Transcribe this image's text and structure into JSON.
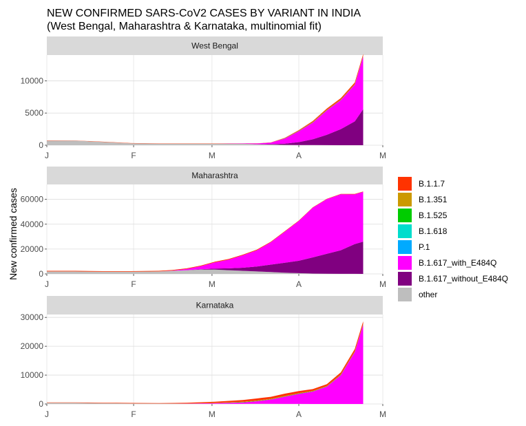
{
  "title": {
    "line1": "NEW CONFIRMED SARS-CoV2 CASES BY VARIANT IN INDIA",
    "line2": "(West Bengal, Maharashtra & Karnataka, multinomial fit)"
  },
  "ylabel": "New confirmed cases",
  "colors": {
    "panel_strip": "#d9d9d9",
    "grid": "#dcdcdc",
    "axis_text": "#4d4d4d"
  },
  "legend": [
    {
      "label": "B.1.1.7",
      "color": "#FF3300"
    },
    {
      "label": "B.1.351",
      "color": "#CC9900"
    },
    {
      "label": "B.1.525",
      "color": "#00CC00"
    },
    {
      "label": "B.1.618",
      "color": "#00DDCC"
    },
    {
      "label": "P.1",
      "color": "#00AAFF"
    },
    {
      "label": "B.1.617_with_E484Q",
      "color": "#FF00FF"
    },
    {
      "label": "B.1.617_without_E484Q",
      "color": "#800080"
    },
    {
      "label": "other",
      "color": "#BEBEBE"
    }
  ],
  "chart_data": [
    {
      "type": "area",
      "stacked": true,
      "panel": "West Bengal",
      "x_ticks": [
        "J",
        "F",
        "M",
        "A",
        "M"
      ],
      "x_range_days": [
        0,
        120
      ],
      "ylim": [
        0,
        14000
      ],
      "y_ticks": [
        0,
        5000,
        10000
      ],
      "grid": true,
      "x": [
        0,
        10,
        20,
        30,
        40,
        50,
        60,
        70,
        75,
        80,
        85,
        90,
        95,
        100,
        105,
        110,
        113
      ],
      "series": [
        {
          "name": "other",
          "values": [
            700,
            700,
            500,
            300,
            250,
            250,
            250,
            250,
            150,
            100,
            50,
            30,
            20,
            10,
            5,
            0,
            0
          ]
        },
        {
          "name": "B.1.617_without_E484Q",
          "values": [
            0,
            0,
            0,
            0,
            0,
            0,
            0,
            0,
            0,
            60,
            200,
            450,
            900,
            1600,
            2500,
            3700,
            5600
          ]
        },
        {
          "name": "B.1.617_with_E484Q",
          "values": [
            0,
            0,
            0,
            0,
            0,
            0,
            0,
            40,
            120,
            250,
            800,
            1700,
            2600,
            3800,
            4500,
            5700,
            8200
          ]
        },
        {
          "name": "B.1.1.7",
          "values": [
            50,
            40,
            40,
            30,
            30,
            30,
            30,
            20,
            20,
            20,
            60,
            100,
            150,
            200,
            220,
            240,
            260
          ]
        },
        {
          "name": "B.1.351",
          "values": [
            0,
            0,
            0,
            0,
            0,
            0,
            0,
            0,
            0,
            0,
            20,
            30,
            40,
            50,
            50,
            60,
            60
          ]
        },
        {
          "name": "B.1.525",
          "values": [
            0,
            0,
            0,
            0,
            0,
            0,
            0,
            0,
            0,
            0,
            20,
            30,
            40,
            40,
            40,
            40,
            40
          ]
        }
      ]
    },
    {
      "type": "area",
      "stacked": true,
      "panel": "Maharashtra",
      "x_ticks": [
        "J",
        "F",
        "M",
        "A",
        "M"
      ],
      "x_range_days": [
        0,
        120
      ],
      "ylim": [
        0,
        72000
      ],
      "y_ticks": [
        0,
        20000,
        40000,
        60000
      ],
      "grid": true,
      "x": [
        0,
        10,
        20,
        30,
        40,
        45,
        50,
        55,
        60,
        65,
        70,
        75,
        80,
        85,
        90,
        95,
        100,
        105,
        110,
        113
      ],
      "series": [
        {
          "name": "other",
          "values": [
            2000,
            2000,
            1800,
            1800,
            2000,
            2500,
            3000,
            3500,
            3500,
            3000,
            2500,
            2000,
            1500,
            1000,
            600,
            300,
            150,
            80,
            30,
            0
          ]
        },
        {
          "name": "B.1.617_without_E484Q",
          "values": [
            0,
            0,
            0,
            0,
            0,
            0,
            0,
            200,
            800,
            1500,
            2500,
            4000,
            6000,
            8000,
            10000,
            13000,
            16000,
            19000,
            24000,
            26000
          ]
        },
        {
          "name": "B.1.617_with_E484Q",
          "values": [
            0,
            0,
            0,
            0,
            0,
            200,
            1000,
            2500,
            5000,
            7000,
            10000,
            13000,
            18000,
            25000,
            32000,
            40000,
            44000,
            45000,
            40000,
            40000
          ]
        },
        {
          "name": "B.1.1.7",
          "values": [
            500,
            500,
            400,
            400,
            500,
            500,
            500,
            500,
            500,
            500,
            500,
            500,
            400,
            400,
            300,
            300,
            300,
            300,
            300,
            300
          ]
        }
      ]
    },
    {
      "type": "area",
      "stacked": true,
      "panel": "Karnataka",
      "x_ticks": [
        "J",
        "F",
        "M",
        "A",
        "M"
      ],
      "x_range_days": [
        0,
        120
      ],
      "ylim": [
        0,
        31000
      ],
      "y_ticks": [
        0,
        10000,
        20000,
        30000
      ],
      "grid": true,
      "x": [
        0,
        10,
        20,
        30,
        40,
        50,
        60,
        70,
        75,
        80,
        85,
        90,
        95,
        100,
        105,
        110,
        113
      ],
      "series": [
        {
          "name": "other",
          "values": [
            400,
            400,
            300,
            200,
            150,
            100,
            80,
            60,
            50,
            40,
            30,
            20,
            10,
            5,
            0,
            0,
            0
          ]
        },
        {
          "name": "B.1.617_without_E484Q",
          "values": [
            0,
            0,
            0,
            0,
            0,
            0,
            0,
            0,
            0,
            0,
            0,
            0,
            0,
            0,
            0,
            0,
            0
          ]
        },
        {
          "name": "B.1.617_with_E484Q",
          "values": [
            0,
            0,
            0,
            0,
            0,
            50,
            200,
            500,
            900,
            1500,
            2500,
            3500,
            4300,
            6000,
            10000,
            18000,
            27500
          ]
        },
        {
          "name": "B.1.1.7",
          "values": [
            150,
            150,
            150,
            150,
            150,
            250,
            400,
            600,
            700,
            700,
            800,
            700,
            600,
            600,
            700,
            800,
            900
          ]
        },
        {
          "name": "B.1.351",
          "values": [
            0,
            0,
            0,
            0,
            0,
            0,
            50,
            100,
            150,
            150,
            150,
            150,
            150,
            150,
            150,
            150,
            150
          ]
        },
        {
          "name": "B.1.525",
          "values": [
            0,
            0,
            0,
            0,
            0,
            0,
            40,
            100,
            100,
            100,
            100,
            100,
            100,
            100,
            100,
            100,
            100
          ]
        }
      ]
    }
  ]
}
